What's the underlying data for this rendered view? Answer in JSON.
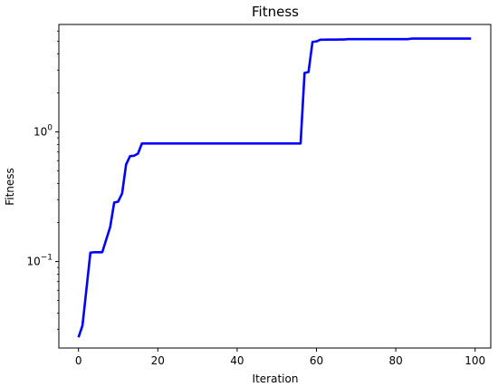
{
  "chart_data": {
    "type": "line",
    "title": "Fitness",
    "xlabel": "Iteration",
    "ylabel": "Fitness",
    "xlim": [
      -4.95,
      103.95
    ],
    "ylim": [
      0.0215,
      6.75
    ],
    "yscale": "log",
    "grid": false,
    "x_ticks": [
      0,
      20,
      40,
      60,
      80,
      100
    ],
    "y_ticks": [
      {
        "value": 0.1,
        "base": "10",
        "exp": "−1"
      },
      {
        "value": 1,
        "base": "10",
        "exp": "0"
      }
    ],
    "series": [
      {
        "color": "#0000ff",
        "x": [
          0,
          1,
          2,
          3,
          4,
          5,
          6,
          7,
          8,
          9,
          10,
          11,
          12,
          13,
          14,
          15,
          16,
          17,
          18,
          19,
          20,
          21,
          22,
          23,
          24,
          25,
          26,
          27,
          28,
          29,
          30,
          31,
          32,
          33,
          34,
          35,
          36,
          37,
          38,
          39,
          40,
          41,
          42,
          43,
          44,
          45,
          46,
          47,
          48,
          49,
          50,
          51,
          52,
          53,
          54,
          55,
          56,
          57,
          58,
          59,
          60,
          61,
          62,
          63,
          64,
          65,
          66,
          67,
          68,
          69,
          70,
          71,
          72,
          73,
          74,
          75,
          76,
          77,
          78,
          79,
          80,
          81,
          82,
          83,
          84,
          85,
          86,
          87,
          88,
          89,
          90,
          91,
          92,
          93,
          94,
          95,
          96,
          97,
          98,
          99
        ],
        "y": [
          0.026,
          0.032,
          0.061,
          0.117,
          0.118,
          0.118,
          0.118,
          0.148,
          0.185,
          0.285,
          0.29,
          0.335,
          0.56,
          0.65,
          0.655,
          0.68,
          0.815,
          0.815,
          0.815,
          0.815,
          0.815,
          0.815,
          0.815,
          0.815,
          0.815,
          0.815,
          0.815,
          0.815,
          0.815,
          0.815,
          0.815,
          0.815,
          0.815,
          0.815,
          0.815,
          0.815,
          0.815,
          0.815,
          0.815,
          0.815,
          0.815,
          0.815,
          0.815,
          0.815,
          0.815,
          0.815,
          0.815,
          0.815,
          0.815,
          0.815,
          0.815,
          0.815,
          0.815,
          0.815,
          0.815,
          0.815,
          0.815,
          2.85,
          2.9,
          4.95,
          5.0,
          5.15,
          5.15,
          5.16,
          5.16,
          5.16,
          5.17,
          5.17,
          5.2,
          5.2,
          5.2,
          5.2,
          5.2,
          5.2,
          5.2,
          5.2,
          5.2,
          5.2,
          5.2,
          5.2,
          5.2,
          5.2,
          5.2,
          5.2,
          5.25,
          5.25,
          5.25,
          5.25,
          5.25,
          5.25,
          5.25,
          5.25,
          5.25,
          5.25,
          5.25,
          5.25,
          5.25,
          5.25,
          5.25,
          5.25
        ]
      }
    ]
  }
}
